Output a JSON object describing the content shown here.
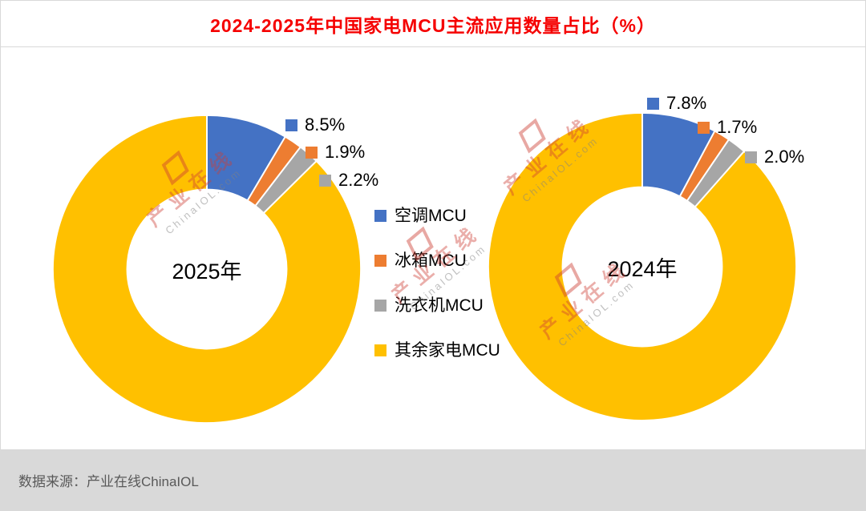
{
  "page": {
    "title": "2024-2025年中国家电MCU主流应用数量占比（%）"
  },
  "footer": {
    "source_text": "数据来源：产业在线ChinaIOL"
  },
  "watermark": {
    "cn": "产业在线",
    "en": "ChinaIOL.com"
  },
  "legend": [
    {
      "label": "空调MCU",
      "color": "#4472C4"
    },
    {
      "label": "冰箱MCU",
      "color": "#ED7D31"
    },
    {
      "label": "洗衣机MCU",
      "color": "#A6A6A6"
    },
    {
      "label": "其余家电MCU",
      "color": "#FFC000"
    }
  ],
  "chart_data": [
    {
      "type": "pie",
      "subtype": "donut",
      "title_center": "2025年",
      "categories": [
        "空调MCU",
        "冰箱MCU",
        "洗衣机MCU",
        "其余家电MCU"
      ],
      "values": [
        8.5,
        1.9,
        2.2,
        87.4
      ],
      "labels": [
        "8.5%",
        "1.9%",
        "2.2%"
      ],
      "colors": [
        "#4472C4",
        "#ED7D31",
        "#A6A6A6",
        "#FFC000"
      ],
      "start_angle_deg": 0,
      "direction": "clockwise",
      "legend_position": "center-between-charts"
    },
    {
      "type": "pie",
      "subtype": "donut",
      "title_center": "2024年",
      "categories": [
        "空调MCU",
        "冰箱MCU",
        "洗衣机MCU",
        "其余家电MCU"
      ],
      "values": [
        7.8,
        1.7,
        2.0,
        88.5
      ],
      "labels": [
        "7.8%",
        "1.7%",
        "2.0%"
      ],
      "colors": [
        "#4472C4",
        "#ED7D31",
        "#A6A6A6",
        "#FFC000"
      ],
      "start_angle_deg": 0,
      "direction": "clockwise",
      "legend_position": "center-between-charts"
    }
  ]
}
